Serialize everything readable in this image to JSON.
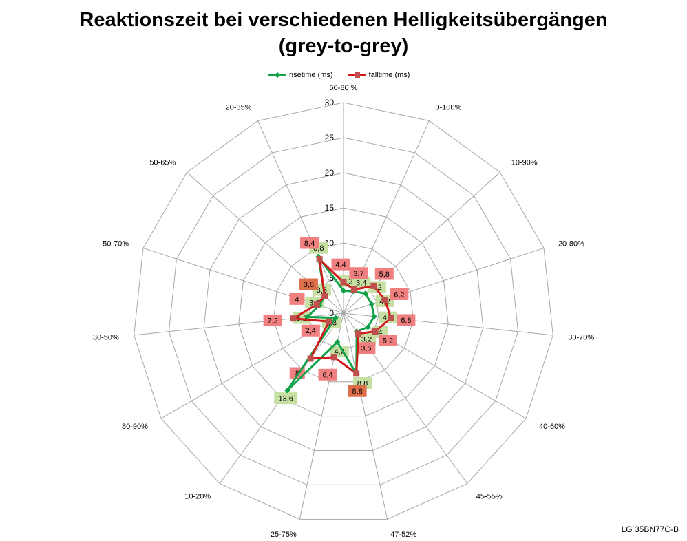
{
  "title_line1": "Reaktionszeit bei verschiedenen Helligkeitsübergängen",
  "title_line2": "(grey-to-grey)",
  "model": "LG 35BN77C-B",
  "colors": {
    "rise": "#12a34a",
    "fall": "#d21a1a",
    "rise_label_bg": "#c6e0a4",
    "fall_label_bg": "#f08080",
    "overlap_label_bg": "#dc6e4a",
    "grid": "#a6a6a6"
  },
  "chart_data": {
    "type": "radar",
    "title": "Reaktionszeit bei verschiedenen Helligkeitsübergängen (grey-to-grey)",
    "rlim": [
      0,
      30
    ],
    "r_ticks": [
      "0",
      "5",
      "10",
      "15",
      "20",
      "25",
      "30"
    ],
    "grid": true,
    "legend_position": "top",
    "categories": [
      "50-80 %",
      "0-100%",
      "10-90%",
      "20-80%",
      "30-70%",
      "40-60%",
      "45-55%",
      "47-52%",
      "25-75%",
      "10-20%",
      "80-90%",
      "30-50%",
      "50-70%",
      "50-65%",
      "20-35%"
    ],
    "series": [
      {
        "name": "risetime (ms)",
        "values": [
          3.2,
          3.4,
          4.2,
          4.2,
          4.4,
          4.0,
          3.2,
          8.8,
          4.2,
          13.6,
          1.3,
          5.2,
          3.6,
          3.6,
          8.8
        ],
        "labels": [
          "3,2",
          "3,4",
          "4,2",
          "4,2",
          "4,4",
          "4",
          "3,2",
          "8,8",
          "4,2",
          "13,6",
          "1,3",
          "5,2",
          "3,6",
          "3,6",
          "8,8"
        ]
      },
      {
        "name": "falltime (ms)",
        "values": [
          4.4,
          3.7,
          5.8,
          6.2,
          6.8,
          5.2,
          3.6,
          8.8,
          6.4,
          8.0,
          2.4,
          7.2,
          4.0,
          3.6,
          8.4
        ],
        "labels": [
          "4,4",
          "3,7",
          "5,8",
          "6,2",
          "6,8",
          "5,2",
          "3,6",
          "8,8",
          "6,4",
          "8",
          "2,4",
          "7,2",
          "4",
          "3,6",
          "8,4"
        ]
      }
    ]
  }
}
